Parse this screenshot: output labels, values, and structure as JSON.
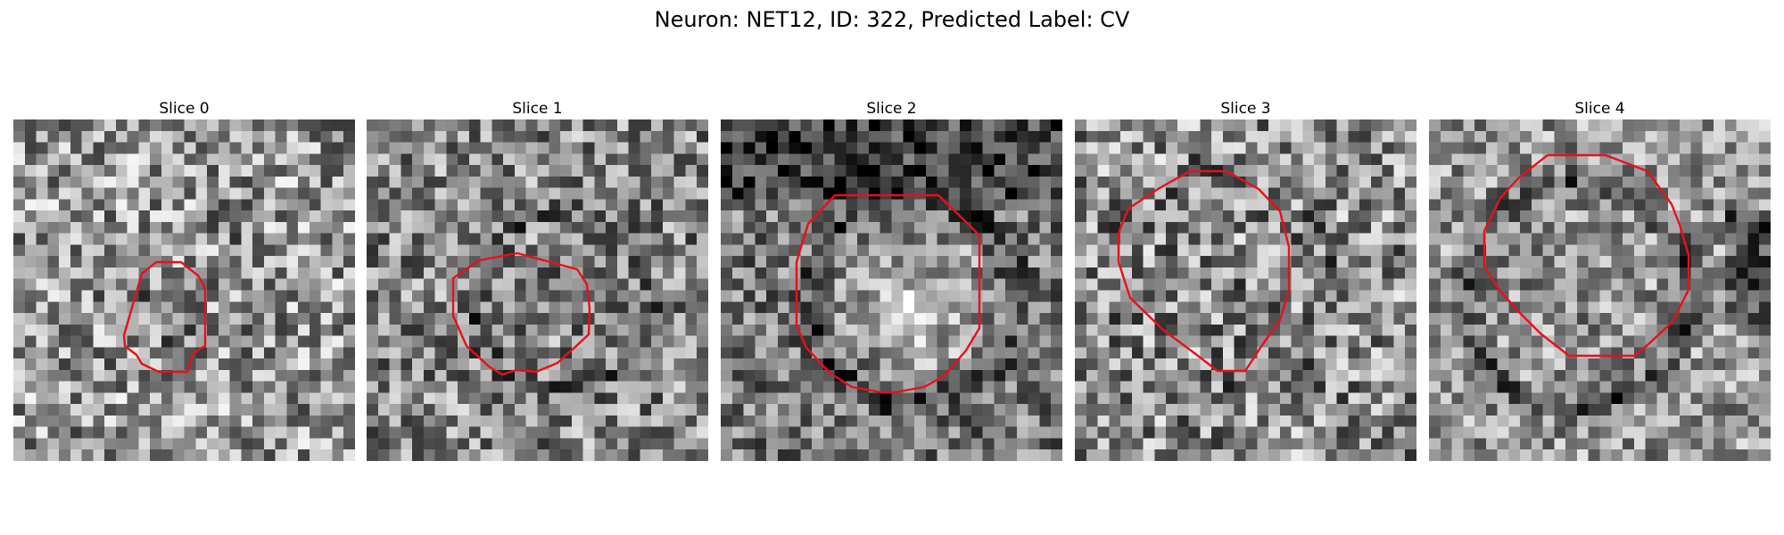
{
  "figure": {
    "title": "Neuron: NET12, ID: 322, Predicted Label: CV",
    "contour_color": "#e8101a",
    "colormap": "gray",
    "panels": [
      {
        "label": "Slice 0",
        "style": "ring-small"
      },
      {
        "label": "Slice 1",
        "style": "ring-medium"
      },
      {
        "label": "Slice 2",
        "style": "bright-blob"
      },
      {
        "label": "Slice 3",
        "style": "ring-large"
      },
      {
        "label": "Slice 4",
        "style": "ring-dark"
      }
    ]
  }
}
